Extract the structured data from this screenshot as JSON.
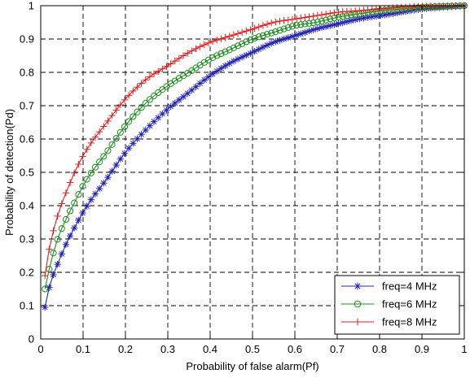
{
  "chart_data": {
    "type": "line",
    "title": "",
    "xlabel": "Probability of false alarm(Pf)",
    "ylabel": "Probability of detection(Pd)",
    "xlim": [
      0,
      1
    ],
    "ylim": [
      0,
      1
    ],
    "xticks": [
      "0",
      "0.1",
      "0.2",
      "0.3",
      "0.4",
      "0.5",
      "0.6",
      "0.7",
      "0.8",
      "0.9",
      "1"
    ],
    "yticks": [
      "0",
      "0.1",
      "0.2",
      "0.3",
      "0.4",
      "0.5",
      "0.6",
      "0.7",
      "0.8",
      "0.9",
      "1"
    ],
    "grid": true,
    "grid_style": "dashed",
    "legend_position": "bottom-right",
    "series": [
      {
        "name": "freq=4 MHz",
        "color": "#2323b4",
        "marker": "asterisk",
        "x": [
          0.01,
          0.02,
          0.04,
          0.06,
          0.08,
          0.1,
          0.12,
          0.15,
          0.2,
          0.25,
          0.3,
          0.35,
          0.4,
          0.45,
          0.5,
          0.55,
          0.6,
          0.65,
          0.7,
          0.75,
          0.8,
          0.85,
          0.9,
          0.95,
          1.0
        ],
        "y": [
          0.095,
          0.155,
          0.225,
          0.285,
          0.335,
          0.38,
          0.42,
          0.47,
          0.56,
          0.63,
          0.69,
          0.74,
          0.79,
          0.83,
          0.86,
          0.89,
          0.91,
          0.93,
          0.945,
          0.96,
          0.97,
          0.98,
          0.99,
          0.995,
          1.0
        ]
      },
      {
        "name": "freq=6 MHz",
        "color": "#1e8c1e",
        "marker": "circle",
        "x": [
          0.01,
          0.02,
          0.04,
          0.06,
          0.08,
          0.1,
          0.12,
          0.15,
          0.2,
          0.25,
          0.3,
          0.35,
          0.4,
          0.45,
          0.5,
          0.55,
          0.6,
          0.65,
          0.7,
          0.75,
          0.8,
          0.85,
          0.9,
          0.95,
          1.0
        ],
        "y": [
          0.15,
          0.21,
          0.3,
          0.36,
          0.41,
          0.46,
          0.5,
          0.55,
          0.64,
          0.71,
          0.76,
          0.8,
          0.84,
          0.87,
          0.9,
          0.92,
          0.94,
          0.95,
          0.965,
          0.975,
          0.985,
          0.99,
          0.995,
          0.998,
          1.0
        ]
      },
      {
        "name": "freq=8 MHz",
        "color": "#e01e1e",
        "marker": "plus",
        "x": [
          0.01,
          0.02,
          0.04,
          0.06,
          0.08,
          0.1,
          0.12,
          0.15,
          0.2,
          0.25,
          0.3,
          0.35,
          0.4,
          0.45,
          0.5,
          0.55,
          0.6,
          0.65,
          0.7,
          0.75,
          0.8,
          0.85,
          0.9,
          0.95,
          1.0
        ],
        "y": [
          0.19,
          0.27,
          0.37,
          0.44,
          0.5,
          0.55,
          0.59,
          0.64,
          0.72,
          0.78,
          0.82,
          0.86,
          0.89,
          0.91,
          0.93,
          0.95,
          0.96,
          0.97,
          0.98,
          0.985,
          0.99,
          0.995,
          0.998,
          0.999,
          1.0
        ]
      }
    ]
  }
}
